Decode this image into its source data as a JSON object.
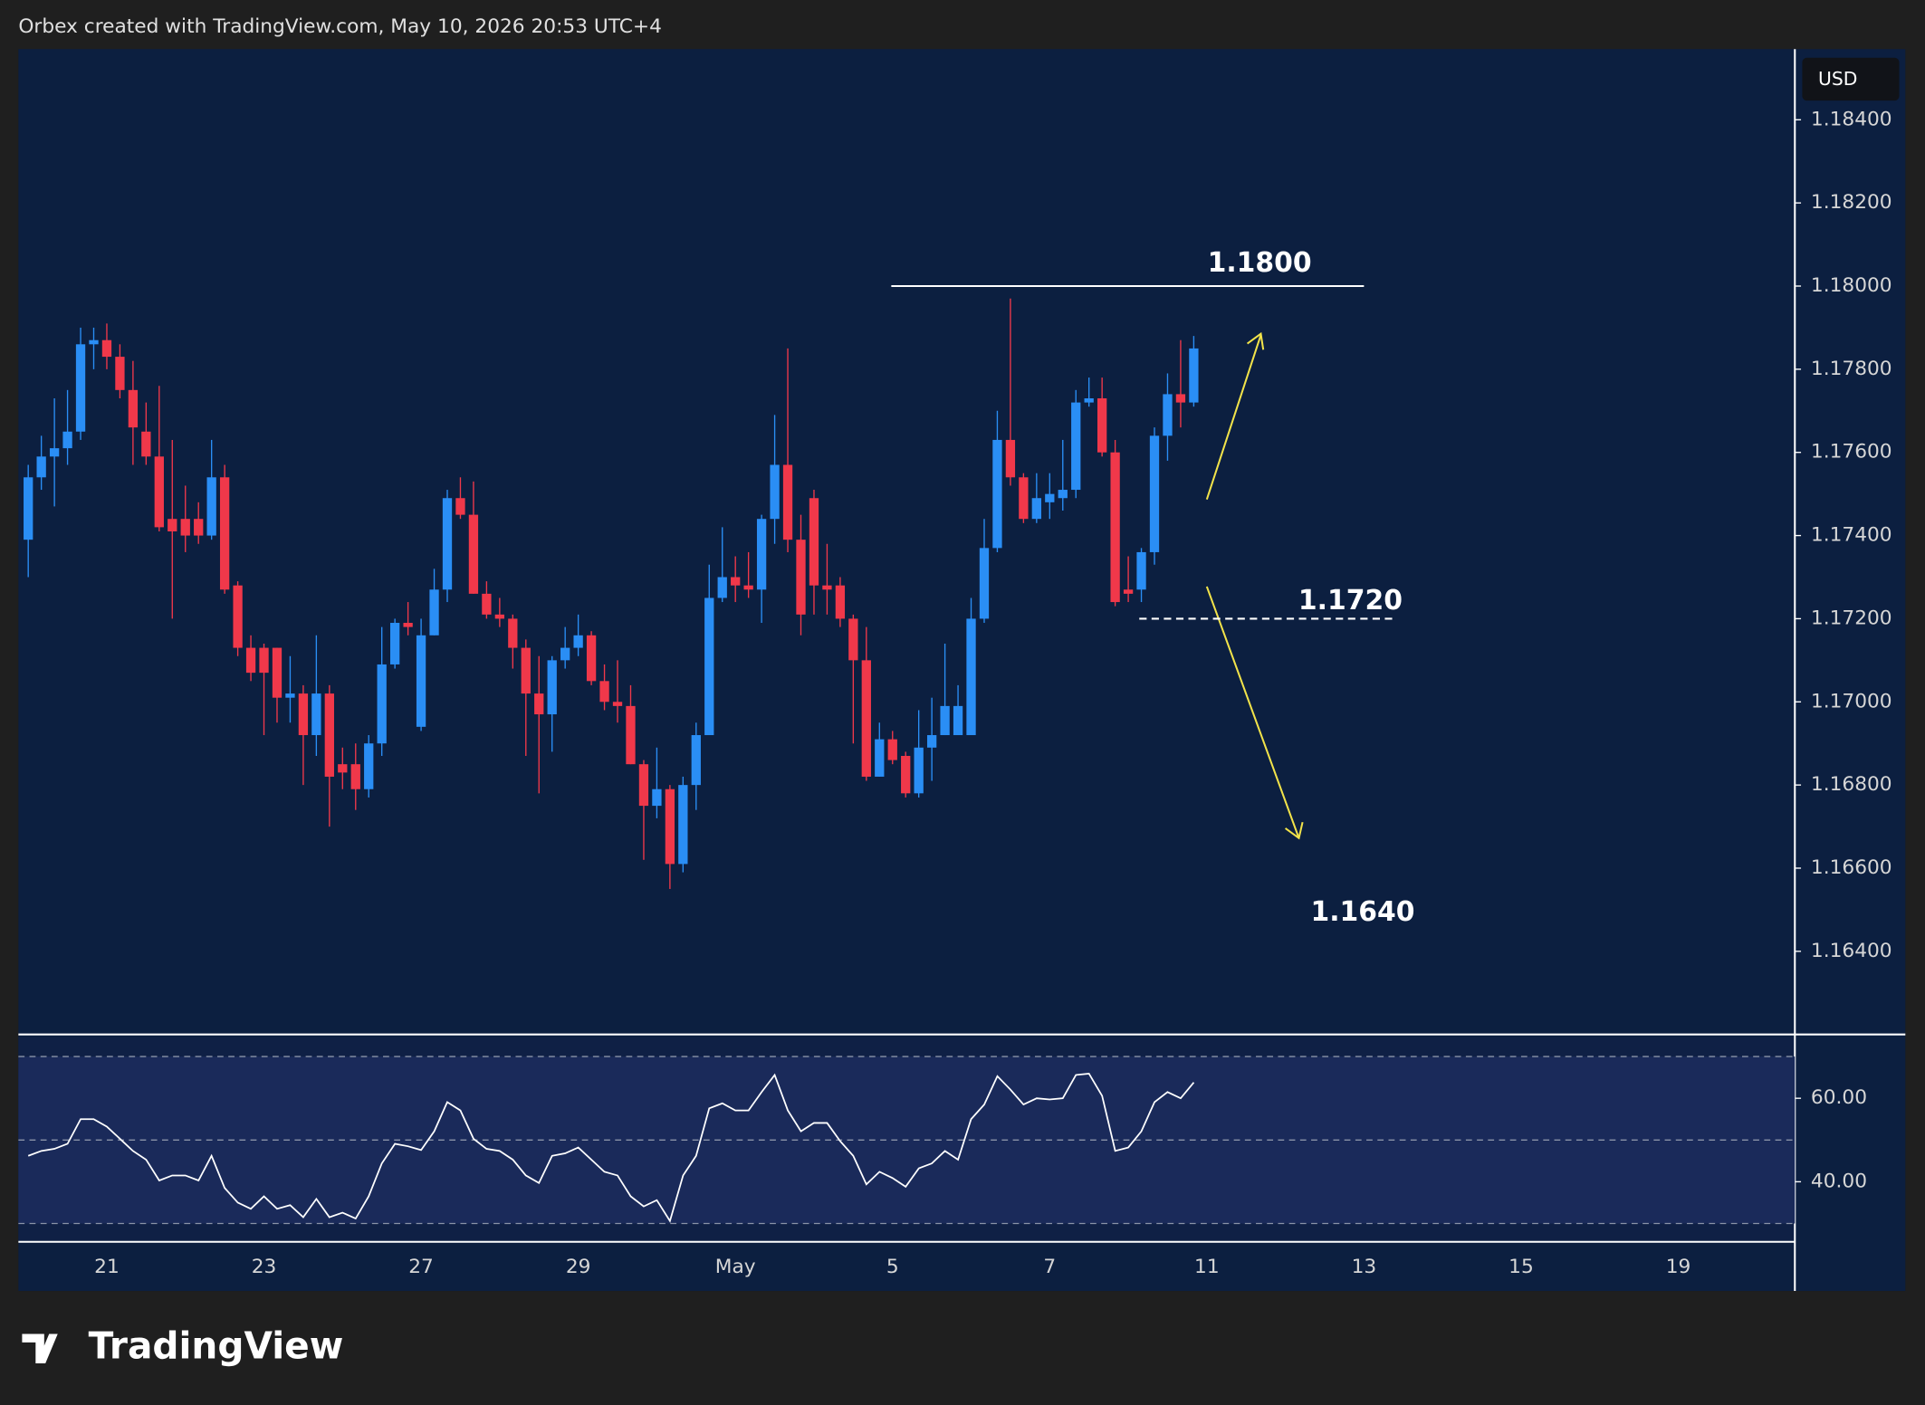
{
  "header": "Orbex created with TradingView.com, May 10, 2026 20:53 UTC+4",
  "logo": "TradingView",
  "chart_data": {
    "type": "candlestick",
    "currency": "USD",
    "categories": [
      null,
      null,
      null,
      null,
      null,
      null,
      "21",
      null,
      null,
      null,
      null,
      null,
      null,
      null,
      null,
      null,
      null,
      null,
      "23",
      null,
      null,
      null,
      null,
      null,
      null,
      null,
      null,
      null,
      null,
      null,
      "27",
      null,
      null,
      null,
      null,
      null,
      null,
      null,
      null,
      null,
      null,
      null,
      "29",
      null,
      null,
      null,
      null,
      null,
      null,
      null,
      null,
      null,
      null,
      null,
      "May",
      null,
      null,
      null,
      null,
      null,
      null,
      null,
      null,
      null,
      null,
      null,
      "5",
      null,
      null,
      null,
      null,
      null,
      null,
      null,
      null,
      null,
      null,
      null,
      "7",
      null,
      null,
      null,
      null,
      null,
      null,
      null,
      null,
      null,
      null,
      null,
      "11",
      null,
      null,
      null,
      null,
      null,
      null,
      null,
      null,
      null,
      null,
      null,
      "13",
      null,
      null,
      null,
      null,
      null,
      null,
      null,
      null,
      null,
      null,
      null,
      "15",
      null,
      null,
      null,
      null,
      null,
      null,
      null,
      null,
      null,
      null,
      null,
      "19",
      null,
      null,
      null,
      null,
      null,
      null,
      null,
      null
    ],
    "open": [
      1.1739,
      1.1754,
      1.1759,
      1.1761,
      1.1765,
      1.1786,
      1.1787,
      1.1783,
      1.1775,
      1.1765,
      1.1759,
      1.1744,
      1.1744,
      1.1744,
      1.174,
      1.1754,
      1.1728,
      1.1713,
      1.1713,
      1.1713,
      1.1701,
      1.1702,
      1.1692,
      1.1702,
      1.1685,
      1.1685,
      1.1679,
      1.169,
      1.1709,
      1.1719,
      1.1694,
      1.1716,
      1.1727,
      1.1749,
      1.1745,
      1.1726,
      1.1721,
      1.172,
      1.1713,
      1.1702,
      1.1697,
      1.171,
      1.1713,
      1.1716,
      1.1705,
      1.17,
      1.1699,
      1.1685,
      1.1675,
      1.1679,
      1.1661,
      1.168,
      1.1692,
      1.1725,
      1.173,
      1.1728,
      1.1727,
      1.1744,
      1.1757,
      1.1739,
      1.1749,
      1.1728,
      1.1728,
      1.172,
      1.171,
      1.1682,
      1.1691,
      1.1687,
      1.1678,
      1.1689,
      1.1692,
      1.1692,
      1.1692,
      1.172,
      1.1737,
      1.1763,
      1.1754,
      1.1744,
      1.1748,
      1.1749,
      1.1751,
      1.1772,
      1.1773,
      1.176,
      1.1727,
      1.1727,
      1.1736,
      1.1764,
      1.1774,
      1.1772,
      null,
      null,
      null,
      null,
      null,
      null,
      null,
      null,
      null,
      null,
      null,
      null,
      null,
      null,
      null,
      null,
      null,
      null,
      null,
      null,
      null,
      null,
      null,
      null,
      null,
      null,
      null,
      null,
      null,
      null,
      null,
      null,
      null,
      null,
      null,
      null,
      null,
      null,
      null,
      null,
      null,
      null,
      null,
      null,
      null
    ],
    "high": [
      1.1757,
      1.1764,
      1.1773,
      1.1775,
      1.179,
      1.179,
      1.1791,
      1.1786,
      1.1782,
      1.1772,
      1.1776,
      1.1763,
      1.1752,
      1.1748,
      1.1763,
      1.1757,
      1.1729,
      1.1716,
      1.1714,
      1.1713,
      1.1711,
      1.1704,
      1.1716,
      1.1704,
      1.1689,
      1.169,
      1.1692,
      1.1718,
      1.172,
      1.1724,
      1.172,
      1.1732,
      1.1751,
      1.1754,
      1.1753,
      1.1729,
      1.1725,
      1.1721,
      1.1715,
      1.1711,
      1.1711,
      1.1718,
      1.1721,
      1.1717,
      1.1709,
      1.171,
      1.1704,
      1.1686,
      1.1689,
      1.168,
      1.1682,
      1.1695,
      1.1733,
      1.1742,
      1.1735,
      1.1736,
      1.1745,
      1.1769,
      1.1785,
      1.1745,
      1.1751,
      1.1738,
      1.173,
      1.1721,
      1.1718,
      1.1695,
      1.1693,
      1.1688,
      1.1698,
      1.1701,
      1.1714,
      1.1704,
      1.1725,
      1.1744,
      1.177,
      1.1797,
      1.1755,
      1.1755,
      1.1755,
      1.1763,
      1.1775,
      1.1778,
      1.1778,
      1.1763,
      1.1735,
      1.1737,
      1.1766,
      1.1779,
      1.1787,
      1.1788,
      null,
      null,
      null,
      null,
      null,
      null,
      null,
      null,
      null,
      null,
      null,
      null,
      null,
      null,
      null,
      null,
      null,
      null,
      null,
      null,
      null,
      null,
      null,
      null,
      null,
      null,
      null,
      null,
      null,
      null,
      null,
      null,
      null,
      null,
      null,
      null,
      null,
      null,
      null,
      null,
      null,
      null,
      null,
      null,
      null
    ],
    "low": [
      1.173,
      1.1751,
      1.1747,
      1.1757,
      1.1763,
      1.178,
      1.178,
      1.1773,
      1.1757,
      1.1757,
      1.1741,
      1.172,
      1.1736,
      1.1738,
      1.1739,
      1.1726,
      1.1711,
      1.1705,
      1.1692,
      1.1695,
      1.1695,
      1.168,
      1.1687,
      1.167,
      1.1679,
      1.1674,
      1.1677,
      1.1687,
      1.1708,
      1.1716,
      1.1693,
      1.1716,
      1.1724,
      1.1744,
      1.1726,
      1.172,
      1.1718,
      1.1708,
      1.1687,
      1.1678,
      1.1688,
      1.1708,
      1.1711,
      1.1704,
      1.1698,
      1.1695,
      1.1685,
      1.1662,
      1.1672,
      1.1655,
      1.1659,
      1.1674,
      1.1692,
      1.1724,
      1.1724,
      1.1725,
      1.1719,
      1.1738,
      1.1736,
      1.1716,
      1.1721,
      1.1721,
      1.1718,
      1.169,
      1.1681,
      1.1682,
      1.1685,
      1.1677,
      1.1677,
      1.1681,
      1.1692,
      1.1692,
      1.1692,
      1.1719,
      1.1736,
      1.1752,
      1.1743,
      1.1743,
      1.1744,
      1.1746,
      1.1749,
      1.1771,
      1.1759,
      1.1723,
      1.1724,
      1.1724,
      1.1733,
      1.1758,
      1.1766,
      1.1771,
      null,
      null,
      null,
      null,
      null,
      null,
      null,
      null,
      null,
      null,
      null,
      null,
      null,
      null,
      null,
      null,
      null,
      null,
      null,
      null,
      null,
      null,
      null,
      null,
      null,
      null,
      null,
      null,
      null,
      null,
      null,
      null,
      null,
      null,
      null,
      null,
      null,
      null,
      null,
      null,
      null,
      null,
      null,
      null,
      null
    ],
    "close": [
      1.1754,
      1.1759,
      1.1761,
      1.1765,
      1.1786,
      1.1787,
      1.1783,
      1.1775,
      1.1766,
      1.1759,
      1.1742,
      1.1741,
      1.174,
      1.174,
      1.1754,
      1.1727,
      1.1713,
      1.1707,
      1.1707,
      1.1701,
      1.1702,
      1.1692,
      1.1702,
      1.1682,
      1.1683,
      1.1679,
      1.169,
      1.1709,
      1.1719,
      1.1718,
      1.1716,
      1.1727,
      1.1749,
      1.1745,
      1.1726,
      1.1721,
      1.172,
      1.1713,
      1.1702,
      1.1697,
      1.171,
      1.1713,
      1.1716,
      1.1705,
      1.17,
      1.1699,
      1.1685,
      1.1675,
      1.1679,
      1.1661,
      1.168,
      1.1692,
      1.1725,
      1.173,
      1.1728,
      1.1727,
      1.1744,
      1.1757,
      1.1739,
      1.1721,
      1.1728,
      1.1727,
      1.172,
      1.171,
      1.1682,
      1.1691,
      1.1686,
      1.1678,
      1.1689,
      1.1692,
      1.1699,
      1.1699,
      1.172,
      1.1737,
      1.1763,
      1.1754,
      1.1744,
      1.1749,
      1.175,
      1.1751,
      1.1772,
      1.1773,
      1.176,
      1.1724,
      1.1726,
      1.1736,
      1.1764,
      1.1774,
      1.1772,
      1.1785,
      null,
      null,
      null,
      null,
      null,
      null,
      null,
      null,
      null,
      null,
      null,
      null,
      null,
      null,
      null,
      null,
      null,
      null,
      null,
      null,
      null,
      null,
      null,
      null,
      null,
      null,
      null,
      null,
      null,
      null,
      null,
      null,
      null,
      null,
      null,
      null,
      null,
      null,
      null,
      null,
      null,
      null,
      null,
      null,
      null
    ],
    "up_color": "#2a8ef5",
    "down_color": "#f0384a",
    "ylim": [
      1.162,
      1.1857
    ],
    "yticks": [
      {
        "value": 1.184,
        "label": "1.18400"
      },
      {
        "value": 1.182,
        "label": "1.18200"
      },
      {
        "value": 1.18,
        "label": "1.18000"
      },
      {
        "value": 1.178,
        "label": "1.17800"
      },
      {
        "value": 1.176,
        "label": "1.17600"
      },
      {
        "value": 1.174,
        "label": "1.17400"
      },
      {
        "value": 1.172,
        "label": "1.17200"
      },
      {
        "value": 1.17,
        "label": "1.17000"
      },
      {
        "value": 1.168,
        "label": "1.16800"
      },
      {
        "value": 1.166,
        "label": "1.16600"
      },
      {
        "value": 1.164,
        "label": "1.16400"
      }
    ],
    "levels": [
      {
        "value": 1.18,
        "label": "1.1800",
        "style": "solid"
      },
      {
        "value": 1.172,
        "label": "1.1720",
        "style": "dashed"
      }
    ],
    "annotations": [
      "1.1640"
    ],
    "indicator": {
      "type": "line",
      "color": "#ffffff",
      "values": [
        46.2,
        47.4,
        47.9,
        49.1,
        55.0,
        55.0,
        53.2,
        50.3,
        47.4,
        45.3,
        40.3,
        41.5,
        41.5,
        40.3,
        46.2,
        38.5,
        35.0,
        33.5,
        36.5,
        33.5,
        34.4,
        31.5,
        35.9,
        31.5,
        32.6,
        31.2,
        36.5,
        44.4,
        49.1,
        48.5,
        47.6,
        52.1,
        59.1,
        57.1,
        50.3,
        47.9,
        47.4,
        45.3,
        41.5,
        39.7,
        46.2,
        46.8,
        48.2,
        45.3,
        42.4,
        41.5,
        36.5,
        34.1,
        35.6,
        30.6,
        41.5,
        46.2,
        57.6,
        58.8,
        57.1,
        57.1,
        61.5,
        65.6,
        57.1,
        52.1,
        54.1,
        54.1,
        49.7,
        46.2,
        39.4,
        42.4,
        40.9,
        38.8,
        43.2,
        44.4,
        47.4,
        45.3,
        55.0,
        58.5,
        65.3,
        62.1,
        58.5,
        60.0,
        59.7,
        60.0,
        65.6,
        65.9,
        60.6,
        47.4,
        48.2,
        52.1,
        59.1,
        61.5,
        60.0,
        63.8,
        null,
        null,
        null,
        null,
        null,
        null,
        null,
        null,
        null,
        null,
        null,
        null,
        null,
        null,
        null,
        null,
        null,
        null,
        null,
        null,
        null,
        null,
        null,
        null,
        null,
        null,
        null,
        null,
        null,
        null,
        null,
        null,
        null,
        null,
        null,
        null,
        null,
        null,
        null,
        null,
        null,
        null,
        null,
        null,
        null
      ],
      "ylim": [
        25.6,
        74.7
      ],
      "yticks": [
        {
          "value": 60,
          "label": "60.00"
        },
        {
          "value": 40,
          "label": "40.00"
        }
      ],
      "bands": [
        30,
        50,
        70
      ]
    }
  }
}
